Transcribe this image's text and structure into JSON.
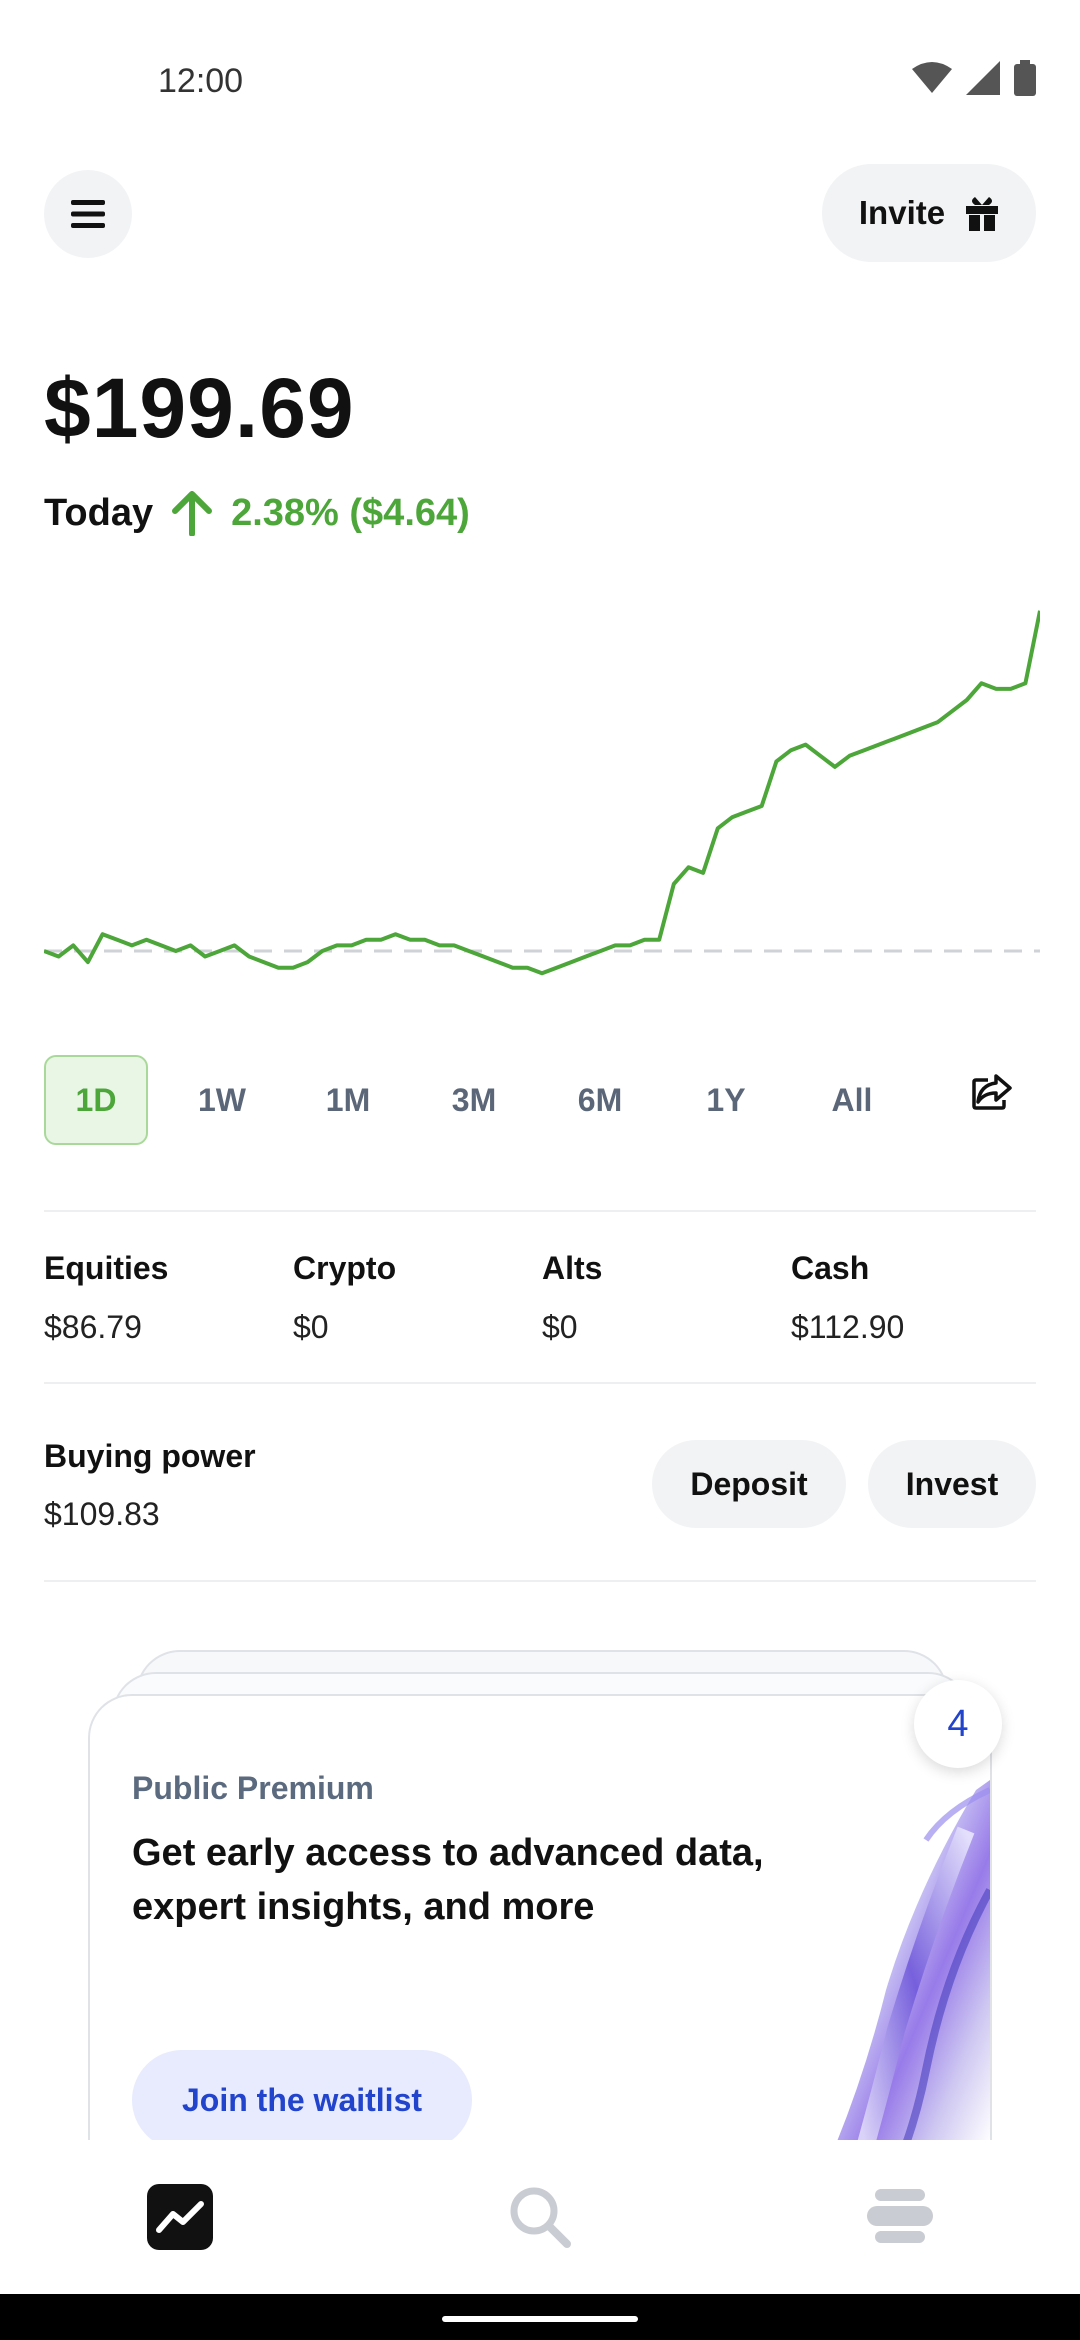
{
  "status_bar": {
    "time": "12:00"
  },
  "header": {
    "invite_label": "Invite"
  },
  "portfolio": {
    "balance": "$199.69",
    "today_label": "Today",
    "today_change": "2.38% ($4.64)",
    "accent_color": "#4da639"
  },
  "ranges": {
    "items": [
      "1D",
      "1W",
      "1M",
      "3M",
      "6M",
      "1Y",
      "All"
    ],
    "selected": "1D"
  },
  "chart_data": {
    "type": "line",
    "series": [
      {
        "values": [
          100.0,
          99.9,
          100.1,
          99.8,
          100.3,
          100.2,
          100.1,
          100.2,
          100.1,
          100.0,
          100.1,
          99.9,
          100.0,
          100.1,
          99.9,
          99.8,
          99.7,
          99.7,
          99.8,
          100.0,
          100.1,
          100.1,
          100.2,
          100.2,
          100.3,
          100.2,
          100.2,
          100.1,
          100.1,
          100.0,
          99.9,
          99.8,
          99.7,
          99.7,
          99.6,
          99.7,
          99.8,
          99.9,
          100.0,
          100.1,
          100.1,
          100.2,
          100.2,
          101.2,
          101.5,
          101.4,
          102.2,
          102.4,
          102.5,
          102.6,
          103.4,
          103.6,
          103.7,
          103.5,
          103.3,
          103.5,
          103.6,
          103.7,
          103.8,
          103.9,
          104.0,
          104.1,
          104.3,
          104.5,
          104.8,
          104.7,
          104.7,
          104.8,
          106.1
        ],
        "color": "#4da639"
      }
    ],
    "baseline": 100.0
  },
  "allocation": [
    {
      "label": "Equities",
      "value": "$86.79"
    },
    {
      "label": "Crypto",
      "value": "$0"
    },
    {
      "label": "Alts",
      "value": "$0"
    },
    {
      "label": "Cash",
      "value": "$112.90"
    }
  ],
  "buying_power": {
    "label": "Buying power",
    "value": "$109.83",
    "deposit_label": "Deposit",
    "invest_label": "Invest"
  },
  "promo": {
    "subtitle": "Public Premium",
    "title": "Get early access to advanced data, expert insights, and more",
    "cta": "Join the waitlist",
    "badge_count": "4"
  },
  "bottom_nav": {
    "items": [
      {
        "icon": "portfolio-chart-icon"
      },
      {
        "icon": "search-icon"
      },
      {
        "icon": "stack-icon"
      }
    ]
  }
}
